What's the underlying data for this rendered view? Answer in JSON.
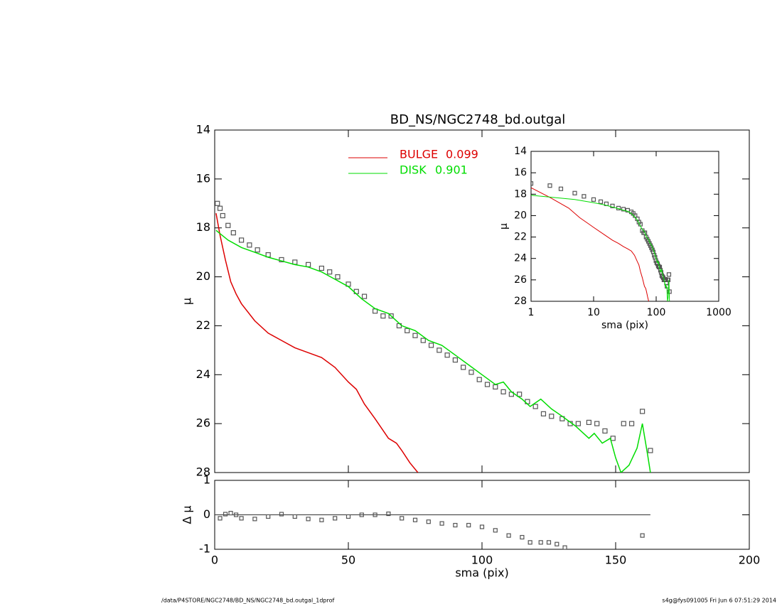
{
  "chart_data": [
    {
      "type": "line",
      "title": "BD_NS/NGC2748_bd.outgal",
      "ylabel": "μ",
      "xlim": [
        0,
        200
      ],
      "xticks": [
        0,
        50,
        100,
        150,
        200
      ],
      "ylim": [
        14,
        28
      ],
      "y_inverted": true,
      "yticks": [
        14,
        16,
        18,
        20,
        22,
        24,
        26,
        28
      ],
      "series": [
        {
          "style": "points",
          "color": "#555555",
          "x": [
            1,
            2,
            3,
            5,
            7,
            10,
            13,
            16,
            20,
            25,
            30,
            35,
            40,
            43,
            46,
            50,
            53,
            56,
            60,
            63,
            66,
            69,
            72,
            75,
            78,
            81,
            84,
            87,
            90,
            93,
            96,
            99,
            102,
            105,
            108,
            111,
            114,
            117,
            120,
            123,
            126,
            130,
            133,
            136,
            140,
            143,
            146,
            149,
            153,
            156,
            160,
            163
          ],
          "values": [
            17.0,
            17.2,
            17.5,
            17.9,
            18.2,
            18.5,
            18.7,
            18.9,
            19.1,
            19.3,
            19.4,
            19.5,
            19.65,
            19.8,
            20.0,
            20.3,
            20.6,
            20.8,
            21.4,
            21.6,
            21.6,
            22.0,
            22.2,
            22.4,
            22.6,
            22.8,
            23.0,
            23.2,
            23.4,
            23.7,
            23.9,
            24.2,
            24.4,
            24.5,
            24.7,
            24.8,
            24.8,
            25.1,
            25.3,
            25.6,
            25.7,
            25.8,
            26.0,
            26.0,
            25.95,
            26.0,
            26.3,
            26.6,
            26.0,
            26.0,
            25.5,
            27.1
          ]
        },
        {
          "style": "line",
          "name": "BULGE",
          "fraction": 0.099,
          "color": "#dd0000",
          "x": [
            0.5,
            2,
            4,
            6,
            8,
            10,
            15,
            20,
            25,
            30,
            35,
            40,
            45,
            50,
            53,
            56,
            60,
            65,
            68,
            70,
            73,
            76
          ],
          "values": [
            17.4,
            18.3,
            19.3,
            20.2,
            20.7,
            21.1,
            21.8,
            22.3,
            22.6,
            22.9,
            23.1,
            23.3,
            23.7,
            24.3,
            24.6,
            25.2,
            25.8,
            26.6,
            26.8,
            27.1,
            27.6,
            28.0
          ]
        },
        {
          "style": "line",
          "name": "DISK",
          "fraction": 0.901,
          "color": "#00dd00",
          "x": [
            0.5,
            5,
            10,
            15,
            20,
            25,
            30,
            35,
            40,
            45,
            50,
            55,
            60,
            65,
            70,
            75,
            80,
            85,
            90,
            95,
            100,
            105,
            108,
            111,
            115,
            118,
            122,
            126,
            130,
            135,
            140,
            142,
            145,
            148,
            150,
            152,
            155,
            158,
            160,
            162,
            163
          ],
          "values": [
            18.1,
            18.5,
            18.8,
            19.0,
            19.2,
            19.35,
            19.5,
            19.6,
            19.8,
            20.1,
            20.4,
            20.9,
            21.3,
            21.5,
            22.0,
            22.2,
            22.6,
            22.8,
            23.2,
            23.6,
            24.0,
            24.4,
            24.3,
            24.7,
            25.0,
            25.3,
            25.0,
            25.4,
            25.7,
            26.1,
            26.6,
            26.4,
            26.8,
            26.6,
            27.4,
            28.0,
            27.7,
            27.0,
            26.0,
            27.3,
            28.0
          ]
        }
      ]
    },
    {
      "type": "scatter",
      "ylabel": "Δ μ",
      "xlabel": "sma (pix)",
      "xlim": [
        0,
        200
      ],
      "xticks": [
        0,
        50,
        100,
        150,
        200
      ],
      "ylim": [
        -1,
        1
      ],
      "yticks": [
        -1,
        0,
        1
      ],
      "reference_line": {
        "y": 0,
        "x_end": 163
      },
      "series": [
        {
          "style": "points",
          "color": "#555555",
          "x": [
            2,
            4,
            6,
            8,
            10,
            15,
            20,
            25,
            30,
            35,
            40,
            45,
            50,
            55,
            60,
            65,
            70,
            75,
            80,
            85,
            90,
            95,
            100,
            105,
            110,
            115,
            118,
            122,
            125,
            128,
            131,
            160
          ],
          "values": [
            -0.1,
            0.02,
            0.05,
            0.0,
            -0.1,
            -0.12,
            -0.05,
            0.02,
            -0.05,
            -0.12,
            -0.15,
            -0.1,
            -0.05,
            0.0,
            0.0,
            0.03,
            -0.1,
            -0.15,
            -0.2,
            -0.25,
            -0.3,
            -0.3,
            -0.35,
            -0.45,
            -0.6,
            -0.65,
            -0.8,
            -0.8,
            -0.8,
            -0.85,
            -0.95,
            -0.6
          ]
        }
      ]
    },
    {
      "type": "line",
      "ylabel": "μ",
      "xlabel": "sma (pix)",
      "log_x": true,
      "xlim": [
        1,
        1000
      ],
      "xticks": [
        1,
        10,
        100,
        1000
      ],
      "ylim": [
        14,
        28
      ],
      "y_inverted": true,
      "yticks": [
        14,
        16,
        18,
        20,
        22,
        24,
        26,
        28
      ],
      "series": [
        {
          "style": "points",
          "color": "#555555",
          "x": [
            1,
            2,
            3,
            5,
            7,
            10,
            13,
            16,
            20,
            25,
            30,
            35,
            40,
            43,
            46,
            50,
            53,
            56,
            60,
            63,
            66,
            69,
            72,
            75,
            78,
            81,
            84,
            87,
            90,
            93,
            96,
            99,
            102,
            105,
            108,
            111,
            114,
            117,
            120,
            123,
            126,
            130,
            133,
            136,
            140,
            143,
            146,
            149,
            153,
            156,
            160,
            163
          ],
          "values": [
            17.0,
            17.2,
            17.5,
            17.9,
            18.2,
            18.5,
            18.7,
            18.9,
            19.1,
            19.3,
            19.4,
            19.5,
            19.65,
            19.8,
            20.0,
            20.3,
            20.6,
            20.8,
            21.4,
            21.6,
            21.6,
            22.0,
            22.2,
            22.4,
            22.6,
            22.8,
            23.0,
            23.2,
            23.4,
            23.7,
            23.9,
            24.2,
            24.4,
            24.5,
            24.7,
            24.8,
            24.8,
            25.1,
            25.3,
            25.6,
            25.7,
            25.8,
            26.0,
            26.0,
            25.95,
            26.0,
            26.3,
            26.6,
            26.0,
            26.0,
            25.5,
            27.1
          ]
        },
        {
          "style": "line",
          "color": "#dd0000",
          "x": [
            1,
            2,
            4,
            6,
            8,
            10,
            15,
            20,
            25,
            30,
            35,
            40,
            45,
            50,
            53,
            56,
            60,
            65,
            68,
            70,
            73,
            76
          ],
          "values": [
            17.4,
            18.3,
            19.3,
            20.2,
            20.7,
            21.1,
            21.8,
            22.3,
            22.6,
            22.9,
            23.1,
            23.3,
            23.7,
            24.3,
            24.6,
            25.2,
            25.8,
            26.6,
            26.8,
            27.1,
            27.6,
            28.0
          ]
        },
        {
          "style": "line",
          "color": "#00dd00",
          "x": [
            1,
            5,
            10,
            15,
            20,
            25,
            30,
            35,
            40,
            45,
            50,
            55,
            60,
            65,
            70,
            75,
            80,
            85,
            90,
            95,
            100,
            105,
            108,
            111,
            115,
            118,
            122,
            126,
            130,
            135,
            140,
            142,
            145,
            148,
            150,
            152,
            155,
            158,
            160,
            162,
            163
          ],
          "values": [
            18.1,
            18.5,
            18.8,
            19.0,
            19.2,
            19.35,
            19.5,
            19.6,
            19.8,
            20.1,
            20.4,
            20.9,
            21.3,
            21.5,
            22.0,
            22.2,
            22.6,
            22.8,
            23.2,
            23.6,
            24.0,
            24.4,
            24.3,
            24.7,
            25.0,
            25.3,
            25.0,
            25.4,
            25.7,
            26.1,
            26.6,
            26.4,
            26.8,
            26.6,
            27.4,
            28.0,
            27.7,
            27.0,
            26.0,
            27.3,
            28.0
          ]
        }
      ]
    }
  ],
  "footer": {
    "left": "/data/P4STORE/NGC2748/BD_NS/NGC2748_bd.outgal_1dprof",
    "right": "s4g@fys091005  Fri Jun  6 07:51:29 2014"
  }
}
